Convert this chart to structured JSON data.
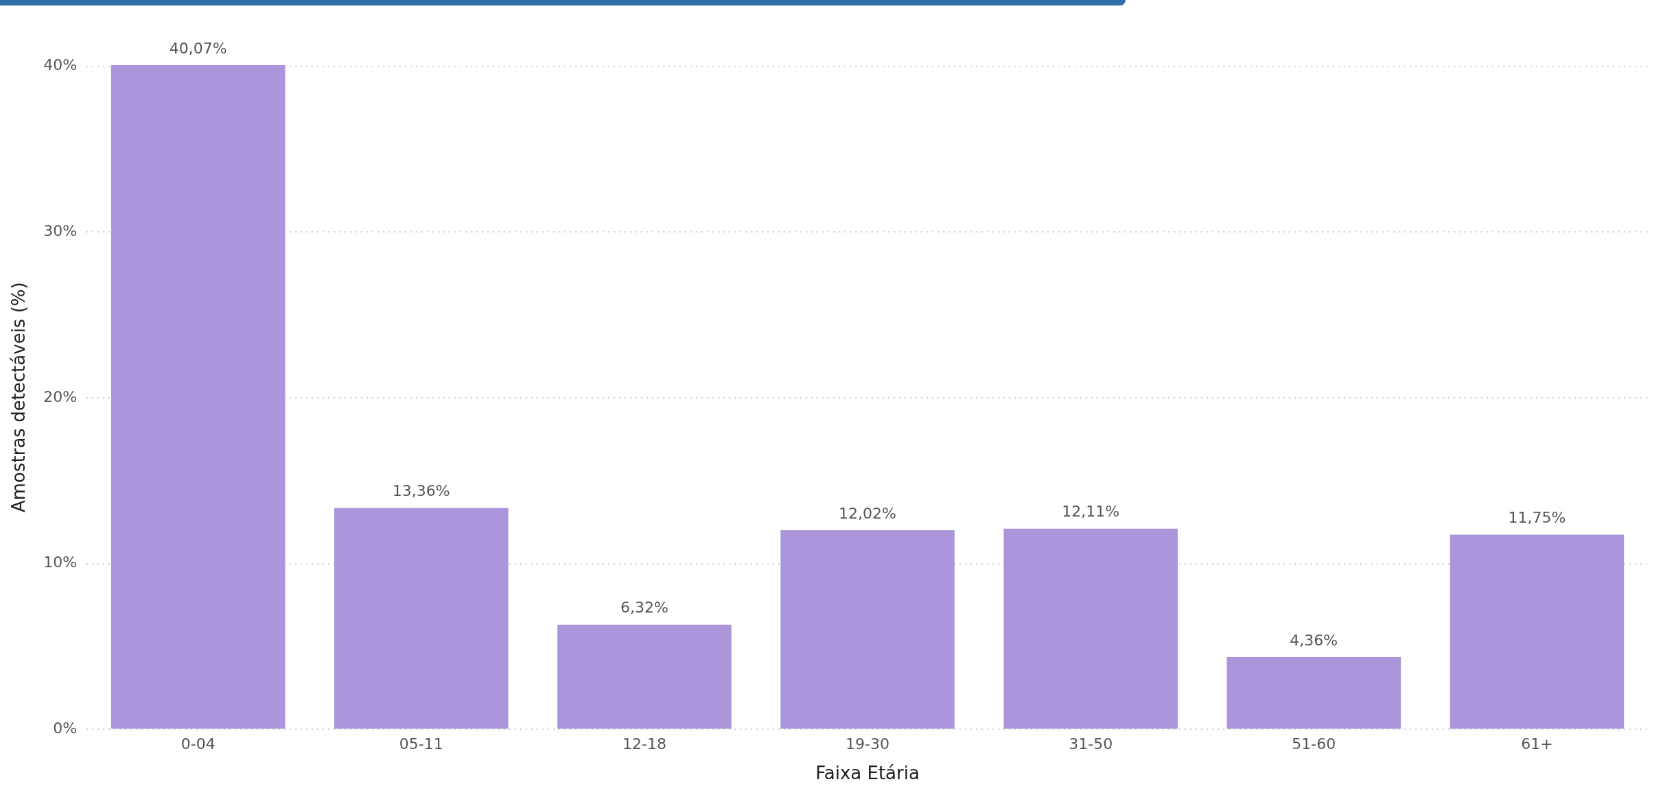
{
  "chart_data": {
    "type": "bar",
    "xlabel": "Faixa Etária",
    "ylabel": "Amostras detectáveis (%)",
    "categories": [
      "0-04",
      "05-11",
      "12-18",
      "19-30",
      "31-50",
      "51-60",
      "61+"
    ],
    "values": [
      40.07,
      13.36,
      6.32,
      12.02,
      12.11,
      4.36,
      11.75
    ],
    "value_labels": [
      "40,07%",
      "13,36%",
      "6,32%",
      "12,02%",
      "12,11%",
      "4,36%",
      "11,75%"
    ],
    "color": "#ab96dc",
    "ylim": [
      0,
      40.07
    ],
    "yticks": [
      {
        "value": 0,
        "label": "0%"
      },
      {
        "value": 10,
        "label": "10%"
      },
      {
        "value": 20,
        "label": "20%"
      },
      {
        "value": 30,
        "label": "30%"
      },
      {
        "value": 40,
        "label": "40%"
      }
    ],
    "grid": "y",
    "legend": false
  }
}
